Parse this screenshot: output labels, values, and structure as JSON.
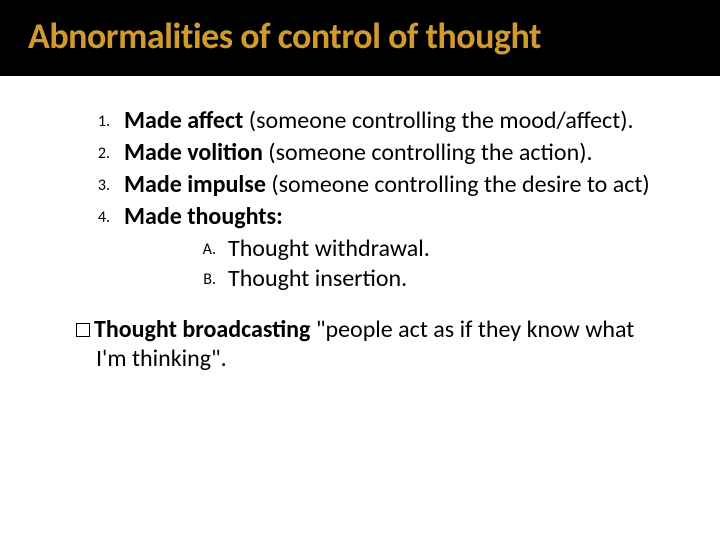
{
  "title": "Abnormalities of control of thought",
  "items": [
    {
      "marker": "1.",
      "bold": "Made affect",
      "rest": " (someone controlling the mood/affect)."
    },
    {
      "marker": "2.",
      "bold": "Made volition",
      "rest": " (someone controlling the action)."
    },
    {
      "marker": "3.",
      "bold": "Made impulse",
      "rest": " (someone controlling the desire to act)"
    },
    {
      "marker": "4.",
      "bold": "Made thoughts:",
      "rest": ""
    }
  ],
  "subitems": [
    {
      "marker": "A.",
      "text": "Thought withdrawal."
    },
    {
      "marker": "B.",
      "text": "Thought insertion."
    }
  ],
  "broadcast_bold": "Thought broadcasting",
  "broadcast_rest": " \"people act as if they know what I'm thinking\".",
  "colors": {
    "title_bg": "#000000",
    "title_fg": "#d09a2c",
    "body_bg": "#ffffff",
    "body_fg": "#000000"
  }
}
